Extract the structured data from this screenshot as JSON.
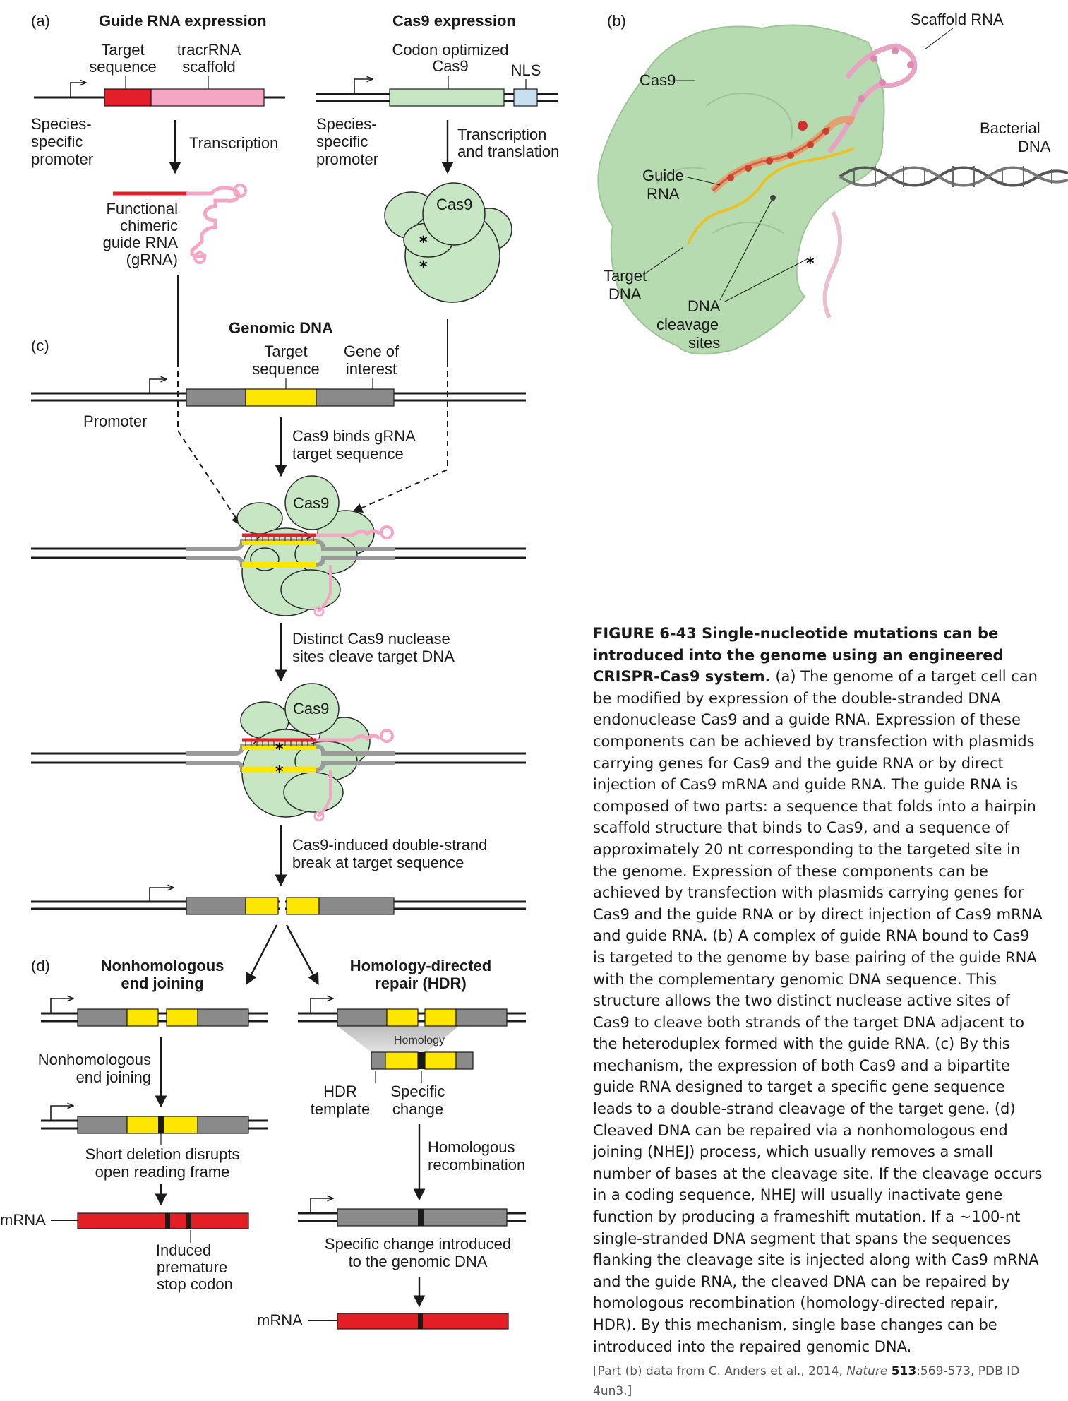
{
  "panels": {
    "a": "(a)",
    "b": "(b)",
    "c": "(c)",
    "d": "(d)"
  },
  "panel_a": {
    "guide_title": "Guide RNA expression",
    "cas9_title": "Cas9 expression",
    "target_sequence": [
      "Target",
      "sequence"
    ],
    "tracr_scaffold": [
      "tracrRNA",
      "scaffold"
    ],
    "species_promoter": [
      "Species-",
      "specific",
      "promoter"
    ],
    "transcription": "Transcription",
    "functional_grna": [
      "Functional",
      "chimeric",
      "guide RNA",
      "(gRNA)"
    ],
    "codon_optimized": [
      "Codon optimized",
      "Cas9"
    ],
    "nls": "NLS",
    "transcription_translation": [
      "Transcription",
      "and translation"
    ],
    "cas9": "Cas9"
  },
  "panel_b": {
    "scaffold_rna": "Scaffold RNA",
    "cas9": "Cas9",
    "bacterial_dna": [
      "Bacterial",
      "DNA"
    ],
    "guide_rna": [
      "Guide",
      "RNA"
    ],
    "target_dna": [
      "Target",
      "DNA"
    ],
    "dna_cleavage": [
      "DNA",
      "cleavage",
      "sites"
    ]
  },
  "panel_c": {
    "genomic_dna": "Genomic DNA",
    "target_sequence": [
      "Target",
      "sequence"
    ],
    "gene_of_interest": [
      "Gene of",
      "interest"
    ],
    "promoter": "Promoter",
    "cas9_binds": [
      "Cas9 binds gRNA",
      "target sequence"
    ],
    "cas9": "Cas9",
    "distinct_sites": [
      "Distinct Cas9 nuclease",
      "sites cleave target DNA"
    ],
    "double_strand": [
      "Cas9-induced double-strand",
      "break at target sequence"
    ]
  },
  "panel_d": {
    "nhej_title": [
      "Nonhomologous",
      "end joining"
    ],
    "hdr_title": [
      "Homology-directed",
      "repair (HDR)"
    ],
    "homology": "Homology",
    "nhej_step": [
      "Nonhomologous",
      "end joining"
    ],
    "hdr_template": [
      "HDR",
      "template"
    ],
    "specific_change": [
      "Specific",
      "change"
    ],
    "short_deletion": [
      "Short deletion disrupts",
      "open reading frame"
    ],
    "homologous_recomb": [
      "Homologous",
      "recombination"
    ],
    "mrna": "mRNA",
    "induced_stop": [
      "Induced",
      "premature",
      "stop codon"
    ],
    "specific_introduced": [
      "Specific change introduced",
      "to the genomic DNA"
    ]
  },
  "caption": {
    "figure_title": "FIGURE 6-43 Single-nucleotide mutations can be introduced into the genome using an engineered CRISPR-Cas9 system.",
    "body": "(a) The genome of a target cell can be modified by expression of the double-stranded DNA endonuclease Cas9 and a guide RNA. Expression of these components can be achieved by transfection with plasmids carrying genes for Cas9 and the guide RNA or by direct injection of Cas9 mRNA and guide RNA. The guide RNA is composed of two parts: a sequence that folds into a hairpin scaffold structure that binds to Cas9, and a sequence of approximately 20 nt corresponding to the targeted site in the genome. Expression of these components can be achieved by transfection with plasmids carrying genes for Cas9 and the guide RNA or by direct injection of Cas9 mRNA and guide RNA. (b) A complex of guide RNA bound to Cas9 is targeted to the genome by base pairing of the guide RNA with the complementary genomic DNA sequence. This structure allows the two distinct nuclease active sites of Cas9 to cleave both strands of the target DNA adjacent to the heteroduplex formed with the guide RNA. (c) By this mechanism, the expression of both Cas9 and a bipartite guide RNA designed to target a specific gene sequence leads to a double-strand cleavage of the target gene. (d) Cleaved DNA can be repaired via a nonhomologous end joining (NHEJ) process, which usually removes a small number of bases at the cleavage site. If the cleavage occurs in a coding sequence, NHEJ will usually inactivate gene function by producing a frameshift mutation. If a ~100-nt single-stranded DNA segment that spans the sequences flanking the cleavage site is injected along with Cas9 mRNA and the guide RNA, the cleaved DNA can be repaired by homologous recombination (homology-directed repair, HDR). By this mechanism, single base changes can be introduced into the repaired genomic DNA.",
    "source_prefix": "[Part (b) data from C. Anders et al., 2014,",
    "source_journal": "Nature",
    "source_volume": "513",
    "source_pages": ":569-573, PDB ID 4un3.]"
  },
  "colors": {
    "target_red": "#e41e2b",
    "scaffold_pink": "#f4a6c4",
    "cas9_green": "#c6e6c4",
    "cas9_outline": "#2a2a2a",
    "nls_blue": "#c8dff0",
    "gene_gray": "#8a8a8a",
    "target_yellow": "#ffe600",
    "mrna_red": "#e31e24",
    "protein_surface": "#b7dbb1"
  }
}
